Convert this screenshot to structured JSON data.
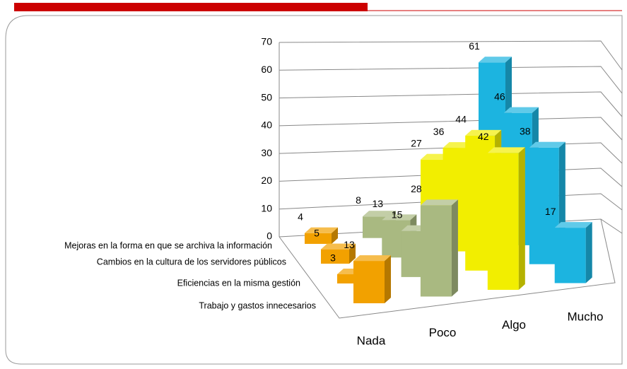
{
  "chart_data": {
    "type": "bar3d",
    "categories": [
      "Nada",
      "Poco",
      "Algo",
      "Mucho"
    ],
    "colors": [
      "#f2a100",
      "#a9b981",
      "#f2ee00",
      "#1cb4e0"
    ],
    "series": [
      {
        "name": "Mejoras en la forma en que se archiva la información",
        "values": [
          4,
          8,
          27,
          61
        ]
      },
      {
        "name": "Cambios en la cultura de los servidores públicos",
        "values": [
          5,
          13,
          36,
          46
        ]
      },
      {
        "name": "Eficiencias en la misma gestión",
        "values": [
          3,
          15,
          44,
          38
        ]
      },
      {
        "name": "Trabajo y gastos innecesarios",
        "values": [
          13,
          28,
          42,
          17
        ]
      }
    ],
    "ylim": [
      0,
      70
    ],
    "yticks": [
      0,
      10,
      20,
      30,
      40,
      50,
      60,
      70
    ],
    "grid": true
  }
}
